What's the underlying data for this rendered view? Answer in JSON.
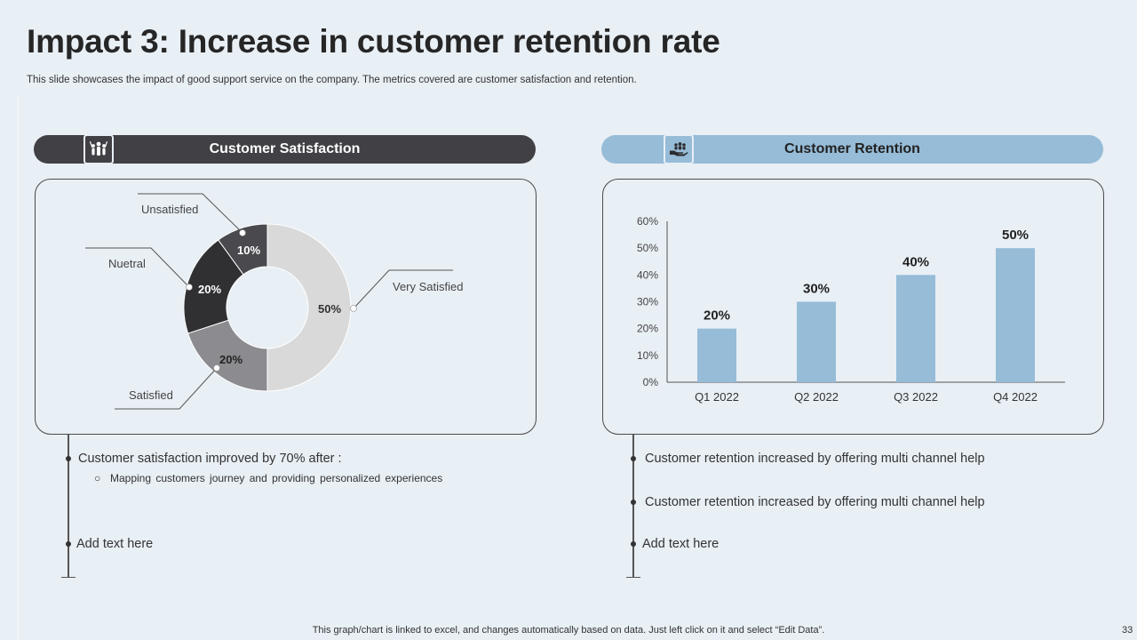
{
  "header": {
    "title": "Impact 3: Increase in customer retention rate",
    "subtitle": "This slide showcases the impact of good support service on the company. The metrics covered are customer satisfaction and retention."
  },
  "left_section": {
    "heading": "Customer Satisfaction",
    "icon": "people-group-icon",
    "bullets": [
      {
        "text": "Customer satisfaction improved by 70% after :",
        "sub": [
          "Mapping customers journey and providing personalized experiences"
        ]
      },
      {
        "text": "Add text here",
        "sub": []
      }
    ]
  },
  "right_section": {
    "heading": "Customer Retention",
    "icon": "hand-holding-people-icon",
    "bullets": [
      {
        "text": "Customer retention increased by offering multi channel help"
      },
      {
        "text": "Customer retention increased by offering multi channel help"
      },
      {
        "text": "Add text here"
      }
    ]
  },
  "chart_data": [
    {
      "type": "pie",
      "subtype": "donut",
      "categories": [
        "Very Satisfied",
        "Satisfied",
        "Nuetral",
        "Unsatisfied"
      ],
      "values": [
        50,
        20,
        20,
        10
      ],
      "value_labels": [
        "50%",
        "20%",
        "20%",
        "10%"
      ],
      "colors": [
        "#d9d9d9",
        "#8c8c90",
        "#303033",
        "#4a4a4e"
      ],
      "label_colors": [
        "#333333",
        "#222222",
        "#ffffff",
        "#ffffff"
      ]
    },
    {
      "type": "bar",
      "categories": [
        "Q1 2022",
        "Q2 2022",
        "Q3 2022",
        "Q4 2022"
      ],
      "values": [
        20,
        30,
        40,
        50
      ],
      "value_labels": [
        "20%",
        "30%",
        "40%",
        "50%"
      ],
      "ylim": [
        0,
        60
      ],
      "yticks": [
        "0%",
        "10%",
        "20%",
        "30%",
        "40%",
        "50%",
        "60%"
      ],
      "color": "#96bcd7"
    }
  ],
  "footer": {
    "note": "This graph/chart is linked to excel,  and changes automatically based on data. Just left click on it and select “Edit Data”.",
    "page": "33"
  }
}
